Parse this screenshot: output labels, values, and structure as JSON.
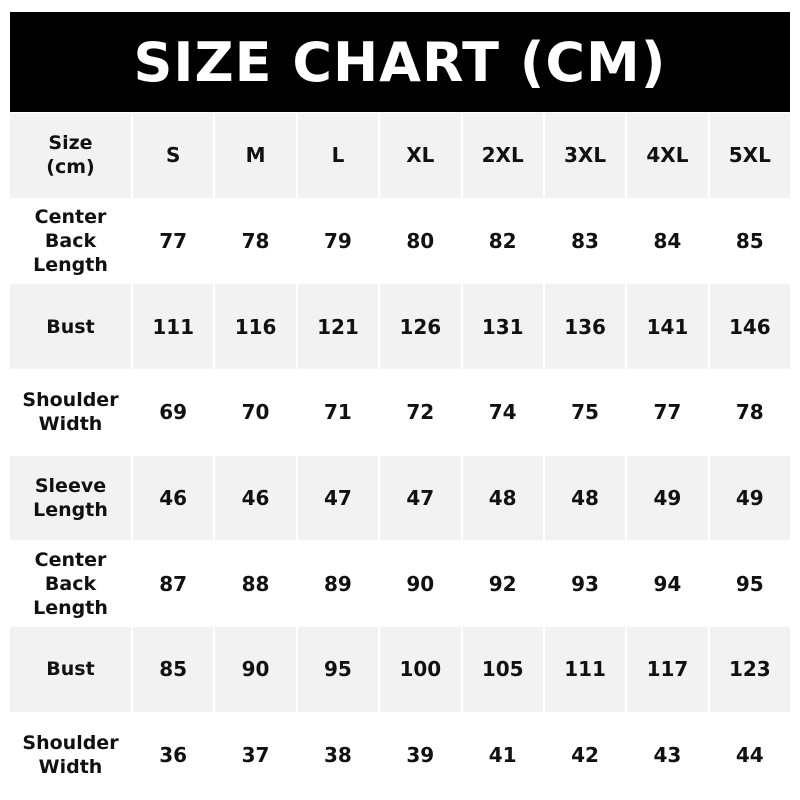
{
  "title": "SIZE CHART (CM)",
  "colors": {
    "title_bg": "#000000",
    "title_text": "#ffffff",
    "stripe": "#f2f2f2"
  },
  "chart_data": {
    "type": "table",
    "title": "SIZE CHART (CM)",
    "corner_label": "Size\n(cm)",
    "columns": [
      "S",
      "M",
      "L",
      "XL",
      "2XL",
      "3XL",
      "4XL",
      "5XL"
    ],
    "rows": [
      {
        "label": "Center\nBack\nLength",
        "values": [
          77,
          78,
          79,
          80,
          82,
          83,
          84,
          85
        ]
      },
      {
        "label": "Bust",
        "values": [
          111,
          116,
          121,
          126,
          131,
          136,
          141,
          146
        ]
      },
      {
        "label": "Shoulder\nWidth",
        "values": [
          69,
          70,
          71,
          72,
          74,
          75,
          77,
          78
        ]
      },
      {
        "label": "Sleeve\nLength",
        "values": [
          46,
          46,
          47,
          47,
          48,
          48,
          49,
          49
        ]
      },
      {
        "label": "Center\nBack\nLength",
        "values": [
          87,
          88,
          89,
          90,
          92,
          93,
          94,
          95
        ]
      },
      {
        "label": "Bust",
        "values": [
          85,
          90,
          95,
          100,
          105,
          111,
          117,
          123
        ]
      },
      {
        "label": "Shoulder\nWidth",
        "values": [
          36,
          37,
          38,
          39,
          41,
          42,
          43,
          44
        ]
      }
    ]
  }
}
